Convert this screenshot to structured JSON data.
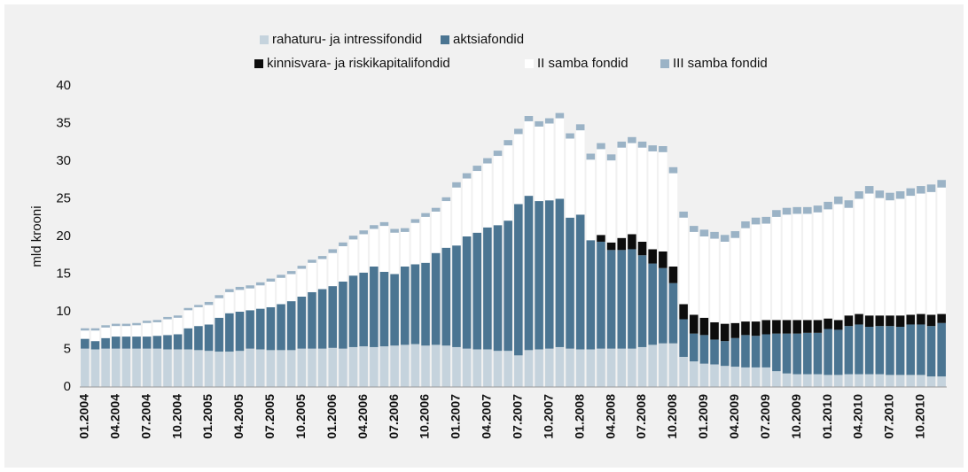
{
  "chart_data": {
    "type": "stacked_bar",
    "y_label": "mld krooni",
    "categories": [
      "01.2004",
      null,
      null,
      "04.2004",
      null,
      null,
      "07.2004",
      null,
      null,
      "10.2004",
      null,
      null,
      "01.2005",
      null,
      null,
      "04.2005",
      null,
      null,
      "07.2005",
      null,
      null,
      "10.2005",
      null,
      null,
      "01.2006",
      null,
      null,
      "04.2006",
      null,
      null,
      "07.2006",
      null,
      null,
      "10.2006",
      null,
      null,
      "01.2007",
      null,
      null,
      "04.2007",
      null,
      null,
      "07.2007",
      null,
      null,
      "10.2007",
      null,
      null,
      "01.2008",
      null,
      null,
      "04.2008",
      null,
      null,
      "07.2008",
      null,
      null,
      "10.2008",
      null,
      null,
      "01.2009",
      null,
      null,
      "04.2009",
      null,
      null,
      "07.2009",
      null,
      null,
      "10.2009",
      null,
      null,
      "01.2010",
      null,
      null,
      "04.2010",
      null,
      null,
      "07.2010",
      null,
      null,
      "10.2010",
      null,
      null
    ],
    "series": [
      {
        "name": "rahaturu- ja intressifondid",
        "color": "#c5d3dd",
        "values": [
          5.1,
          5.0,
          5.1,
          5.1,
          5.1,
          5.1,
          5.1,
          5.1,
          5.0,
          5.0,
          5.0,
          4.9,
          4.8,
          4.7,
          4.7,
          4.8,
          5.1,
          5.0,
          4.9,
          4.9,
          4.9,
          5.1,
          5.1,
          5.1,
          5.2,
          5.1,
          5.3,
          5.4,
          5.3,
          5.4,
          5.5,
          5.6,
          5.7,
          5.5,
          5.6,
          5.5,
          5.3,
          5.1,
          5.0,
          5.0,
          4.8,
          4.8,
          4.2,
          4.9,
          5.0,
          5.1,
          5.3,
          5.1,
          5.0,
          5.0,
          5.1,
          5.1,
          5.1,
          5.1,
          5.3,
          5.6,
          5.8,
          5.8,
          4.0,
          3.4,
          3.1,
          3.0,
          2.8,
          2.7,
          2.6,
          2.6,
          2.6,
          2.1,
          1.8,
          1.7,
          1.7,
          1.7,
          1.6,
          1.6,
          1.7,
          1.7,
          1.7,
          1.7,
          1.6,
          1.6,
          1.6,
          1.6,
          1.4,
          1.4
        ]
      },
      {
        "name": "aktsiafondid",
        "color": "#4b7592",
        "values": [
          1.3,
          1.1,
          1.4,
          1.6,
          1.6,
          1.6,
          1.6,
          1.7,
          1.9,
          2.0,
          2.8,
          3.2,
          3.5,
          4.5,
          5.1,
          5.2,
          5.1,
          5.4,
          5.7,
          6.1,
          6.5,
          6.9,
          7.5,
          7.9,
          8.2,
          8.9,
          9.5,
          9.8,
          10.7,
          9.9,
          9.5,
          10.4,
          10.6,
          11.0,
          12.2,
          13.0,
          13.5,
          14.9,
          15.5,
          16.2,
          16.7,
          17.3,
          20.1,
          20.5,
          19.7,
          19.7,
          19.7,
          17.4,
          17.9,
          14.5,
          14.2,
          13.1,
          13.1,
          13.2,
          12.2,
          10.8,
          10.0,
          8.0,
          5.0,
          3.7,
          3.8,
          3.3,
          3.3,
          3.8,
          4.3,
          4.2,
          4.4,
          5.0,
          5.3,
          5.4,
          5.5,
          5.5,
          6.1,
          6.0,
          6.4,
          6.6,
          6.3,
          6.4,
          6.5,
          6.4,
          6.7,
          6.7,
          6.7,
          7.1
        ]
      },
      {
        "name": "kinnisvara- ja riskikapitalifondid",
        "color": "#0d0d0d",
        "values": [
          0,
          0,
          0,
          0,
          0,
          0,
          0,
          0,
          0,
          0,
          0,
          0,
          0,
          0,
          0,
          0,
          0,
          0,
          0,
          0,
          0,
          0,
          0,
          0,
          0,
          0,
          0,
          0,
          0,
          0,
          0,
          0,
          0,
          0,
          0,
          0,
          0,
          0,
          0,
          0,
          0,
          0,
          0,
          0,
          0,
          0,
          0,
          0,
          0,
          0,
          0.9,
          1.0,
          1.6,
          2.0,
          1.8,
          1.9,
          2.2,
          2.2,
          2.0,
          2.5,
          2.3,
          2.3,
          2.3,
          2.0,
          1.8,
          1.9,
          1.9,
          1.8,
          1.8,
          1.8,
          1.7,
          1.7,
          1.4,
          1.3,
          1.4,
          1.4,
          1.5,
          1.4,
          1.4,
          1.5,
          1.3,
          1.4,
          1.5,
          1.2
        ]
      },
      {
        "name": "II samba fondid",
        "color": "#ffffff",
        "values": [
          1.1,
          1.4,
          1.4,
          1.4,
          1.4,
          1.5,
          1.8,
          1.8,
          2.1,
          2.2,
          2.4,
          2.5,
          2.6,
          2.6,
          2.8,
          2.9,
          2.9,
          3.1,
          3.4,
          3.5,
          3.6,
          3.7,
          3.9,
          4.0,
          4.4,
          4.7,
          4.8,
          5.1,
          5.0,
          6.1,
          5.5,
          4.6,
          5.5,
          6.1,
          5.5,
          6.2,
          7.7,
          7.7,
          8.2,
          8.5,
          9.2,
          10.0,
          9.3,
          9.9,
          9.9,
          10.2,
          10.7,
          10.5,
          11.2,
          10.7,
          11.4,
          10.9,
          12.0,
          12.1,
          12.5,
          13.0,
          13.2,
          12.4,
          11.5,
          11.0,
          10.8,
          11.1,
          10.9,
          11.3,
          12.4,
          12.9,
          12.8,
          13.7,
          14.0,
          14.1,
          14.1,
          14.3,
          14.5,
          15.4,
          14.3,
          15.3,
          16.2,
          15.6,
          15.3,
          15.5,
          15.8,
          16.0,
          16.3,
          16.8
        ]
      },
      {
        "name": "III samba fondid",
        "color": "#9bb3c6",
        "values": [
          0.3,
          0.3,
          0.3,
          0.3,
          0.3,
          0.3,
          0.3,
          0.3,
          0.3,
          0.3,
          0.3,
          0.3,
          0.4,
          0.4,
          0.4,
          0.4,
          0.4,
          0.4,
          0.4,
          0.4,
          0.4,
          0.4,
          0.4,
          0.4,
          0.5,
          0.5,
          0.5,
          0.5,
          0.5,
          0.5,
          0.5,
          0.5,
          0.5,
          0.5,
          0.5,
          0.5,
          0.7,
          0.7,
          0.7,
          0.7,
          0.7,
          0.7,
          0.7,
          0.7,
          0.7,
          0.7,
          0.7,
          0.7,
          0.8,
          0.8,
          0.8,
          0.8,
          0.8,
          0.8,
          0.8,
          0.8,
          0.8,
          0.8,
          0.8,
          0.8,
          0.9,
          0.9,
          0.9,
          0.9,
          0.9,
          0.9,
          0.9,
          0.9,
          0.9,
          0.9,
          0.9,
          0.9,
          1.0,
          1.0,
          1.0,
          1.0,
          1.0,
          1.0,
          1.0,
          1.0,
          1.0,
          1.0,
          1.0,
          1.0
        ]
      }
    ],
    "ylim": [
      0,
      40
    ],
    "yticks": [
      0,
      5,
      10,
      15,
      20,
      25,
      30,
      35,
      40
    ],
    "grid": false,
    "legend": "top"
  }
}
